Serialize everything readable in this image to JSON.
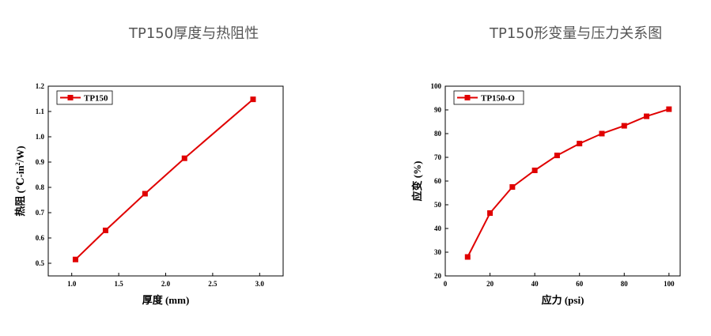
{
  "chart_data": [
    {
      "type": "line",
      "title": "TP150厚度与热阻性",
      "xlabel": "厚度 (mm)",
      "ylabel_main": "热阻 (℃-in",
      "ylabel_sup": "2",
      "ylabel_tail": "/W)",
      "xlim": [
        0.75,
        3.25
      ],
      "ylim": [
        0.45,
        1.2
      ],
      "xticks": [
        "1.0",
        "1.5",
        "2.0",
        "2.5",
        "3.0"
      ],
      "xtick_values": [
        1.0,
        1.5,
        2.0,
        2.5,
        3.0
      ],
      "yticks": [
        "0.5",
        "0.6",
        "0.7",
        "0.8",
        "0.9",
        "1.0",
        "1.1",
        "1.2"
      ],
      "ytick_values": [
        0.5,
        0.6,
        0.7,
        0.8,
        0.9,
        1.0,
        1.1,
        1.2
      ],
      "legend_position": "top-left",
      "series": [
        {
          "name": "TP150",
          "color": "#e00000",
          "x": [
            1.04,
            1.36,
            1.78,
            2.2,
            2.93
          ],
          "y": [
            0.515,
            0.63,
            0.775,
            0.915,
            1.148
          ]
        }
      ]
    },
    {
      "type": "line",
      "title": "TP150形变量与压力关系图",
      "xlabel": "应力 (psi)",
      "ylabel_main": "应变 (%)",
      "ylabel_sup": "",
      "ylabel_tail": "",
      "xlim": [
        0,
        105
      ],
      "ylim": [
        20,
        100
      ],
      "xticks": [
        "0",
        "20",
        "40",
        "60",
        "80",
        "100"
      ],
      "xtick_values": [
        0,
        20,
        40,
        60,
        80,
        100
      ],
      "yticks": [
        "20",
        "30",
        "40",
        "50",
        "60",
        "70",
        "80",
        "90",
        "100"
      ],
      "ytick_values": [
        20,
        30,
        40,
        50,
        60,
        70,
        80,
        90,
        100
      ],
      "legend_position": "top-left",
      "series": [
        {
          "name": "TP150-O",
          "color": "#e00000",
          "x": [
            10,
            20,
            30,
            40,
            50,
            60,
            70,
            80,
            90,
            100
          ],
          "y": [
            28,
            46.5,
            57.5,
            64.5,
            70.8,
            75.8,
            80,
            83.3,
            87.3,
            90.3
          ]
        }
      ]
    }
  ]
}
